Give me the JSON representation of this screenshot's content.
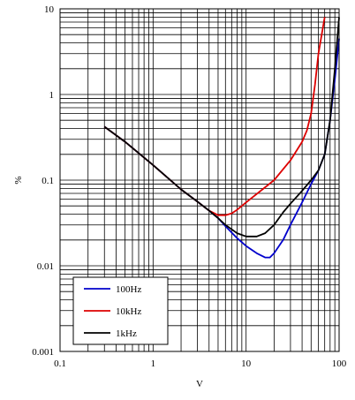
{
  "chart_data": {
    "type": "line",
    "xlabel": "V",
    "ylabel": "%",
    "xscale": "log",
    "yscale": "log",
    "xlim": [
      0.1,
      100
    ],
    "ylim": [
      0.001,
      10
    ],
    "grid": true,
    "legend_position": "bottom-left",
    "x_tick_labels": [
      "0.1",
      "1",
      "10",
      "100"
    ],
    "y_tick_labels": [
      "0.001",
      "0.01",
      "0.1",
      "1",
      "10"
    ],
    "series": [
      {
        "name": "100Hz",
        "color": "#0000cc",
        "x": [
          0.3,
          0.5,
          1,
          2,
          3,
          4,
          5,
          6,
          8,
          10,
          13,
          16,
          18,
          20,
          25,
          30,
          40,
          50,
          60,
          70,
          80,
          90,
          100
        ],
        "y": [
          0.42,
          0.28,
          0.15,
          0.078,
          0.056,
          0.044,
          0.036,
          0.029,
          0.021,
          0.017,
          0.014,
          0.0125,
          0.0125,
          0.014,
          0.02,
          0.03,
          0.055,
          0.09,
          0.13,
          0.2,
          0.5,
          1.5,
          4.5
        ]
      },
      {
        "name": "10kHz",
        "color": "#dd0000",
        "x": [
          0.3,
          0.5,
          1,
          2,
          3,
          4,
          5,
          6,
          7,
          8,
          10,
          15,
          20,
          30,
          40,
          45,
          50,
          55,
          60,
          70
        ],
        "y": [
          0.42,
          0.28,
          0.15,
          0.078,
          0.056,
          0.044,
          0.039,
          0.039,
          0.041,
          0.045,
          0.055,
          0.078,
          0.1,
          0.17,
          0.28,
          0.38,
          0.6,
          1.3,
          3.0,
          8.0
        ]
      },
      {
        "name": "1kHz",
        "color": "#000000",
        "x": [
          0.3,
          0.5,
          1,
          2,
          3,
          4,
          5,
          6,
          8,
          10,
          13,
          16,
          20,
          25,
          30,
          40,
          50,
          60,
          70,
          80,
          90,
          100
        ],
        "y": [
          0.42,
          0.28,
          0.15,
          0.078,
          0.056,
          0.044,
          0.036,
          0.03,
          0.024,
          0.022,
          0.022,
          0.024,
          0.03,
          0.042,
          0.053,
          0.075,
          0.1,
          0.13,
          0.2,
          0.5,
          2.0,
          8.0
        ]
      }
    ]
  }
}
